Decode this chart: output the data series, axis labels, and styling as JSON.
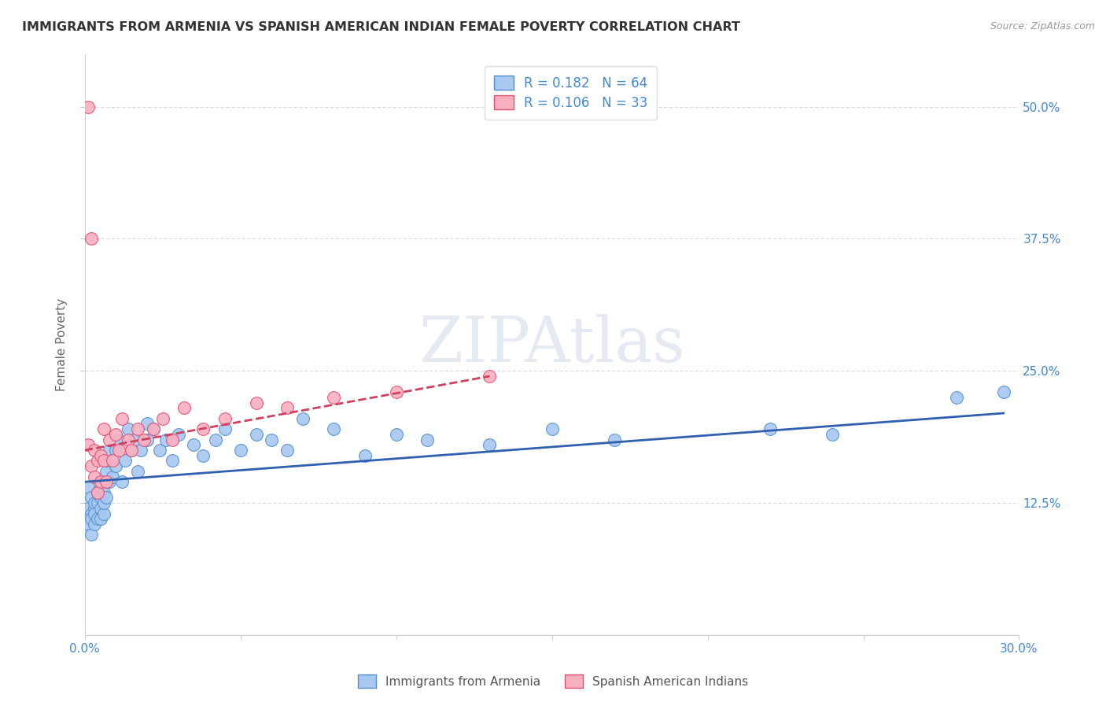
{
  "title": "IMMIGRANTS FROM ARMENIA VS SPANISH AMERICAN INDIAN FEMALE POVERTY CORRELATION CHART",
  "source": "Source: ZipAtlas.com",
  "ylabel": "Female Poverty",
  "legend_labels": [
    "Immigrants from Armenia",
    "Spanish American Indians"
  ],
  "r_values": [
    0.182,
    0.106
  ],
  "n_values": [
    64,
    33
  ],
  "xlim": [
    0.0,
    0.3
  ],
  "ylim": [
    0.0,
    0.55
  ],
  "yticks": [
    0.125,
    0.25,
    0.375,
    0.5
  ],
  "ytick_labels": [
    "12.5%",
    "25.0%",
    "37.5%",
    "50.0%"
  ],
  "blue_color": "#A8C8F0",
  "pink_color": "#F8B0C0",
  "blue_edge_color": "#5090D0",
  "pink_edge_color": "#E05070",
  "blue_line_color": "#3060B0",
  "pink_line_color": "#D04060",
  "title_color": "#333333",
  "axis_label_color": "#666666",
  "tick_label_color": "#4488CC",
  "grid_color": "#DDDDDD",
  "watermark": "ZIPAtlas",
  "blue_x": [
    0.001,
    0.001,
    0.001,
    0.002,
    0.002,
    0.002,
    0.002,
    0.003,
    0.003,
    0.003,
    0.003,
    0.004,
    0.004,
    0.004,
    0.005,
    0.005,
    0.005,
    0.005,
    0.006,
    0.006,
    0.006,
    0.007,
    0.007,
    0.007,
    0.008,
    0.008,
    0.009,
    0.01,
    0.01,
    0.011,
    0.012,
    0.013,
    0.014,
    0.015,
    0.016,
    0.017,
    0.018,
    0.02,
    0.02,
    0.022,
    0.024,
    0.026,
    0.028,
    0.03,
    0.035,
    0.038,
    0.042,
    0.045,
    0.05,
    0.055,
    0.06,
    0.065,
    0.07,
    0.08,
    0.09,
    0.1,
    0.11,
    0.13,
    0.15,
    0.17,
    0.22,
    0.24,
    0.28,
    0.295
  ],
  "blue_y": [
    0.14,
    0.105,
    0.12,
    0.115,
    0.095,
    0.13,
    0.11,
    0.12,
    0.125,
    0.105,
    0.115,
    0.135,
    0.11,
    0.125,
    0.13,
    0.11,
    0.12,
    0.14,
    0.135,
    0.115,
    0.125,
    0.155,
    0.165,
    0.13,
    0.145,
    0.175,
    0.15,
    0.175,
    0.16,
    0.185,
    0.145,
    0.165,
    0.195,
    0.175,
    0.185,
    0.155,
    0.175,
    0.2,
    0.185,
    0.195,
    0.175,
    0.185,
    0.165,
    0.19,
    0.18,
    0.17,
    0.185,
    0.195,
    0.175,
    0.19,
    0.185,
    0.175,
    0.205,
    0.195,
    0.17,
    0.19,
    0.185,
    0.18,
    0.195,
    0.185,
    0.195,
    0.19,
    0.225,
    0.23
  ],
  "pink_x": [
    0.001,
    0.001,
    0.002,
    0.002,
    0.003,
    0.003,
    0.004,
    0.004,
    0.005,
    0.005,
    0.006,
    0.006,
    0.007,
    0.008,
    0.009,
    0.01,
    0.011,
    0.012,
    0.014,
    0.015,
    0.017,
    0.019,
    0.022,
    0.025,
    0.028,
    0.032,
    0.038,
    0.045,
    0.055,
    0.065,
    0.08,
    0.1,
    0.13
  ],
  "pink_y": [
    0.5,
    0.18,
    0.375,
    0.16,
    0.175,
    0.15,
    0.165,
    0.135,
    0.17,
    0.145,
    0.165,
    0.195,
    0.145,
    0.185,
    0.165,
    0.19,
    0.175,
    0.205,
    0.185,
    0.175,
    0.195,
    0.185,
    0.195,
    0.205,
    0.185,
    0.215,
    0.195,
    0.205,
    0.22,
    0.215,
    0.225,
    0.23,
    0.245
  ],
  "blue_line_x": [
    0.0,
    0.295
  ],
  "blue_line_y": [
    0.145,
    0.21
  ],
  "pink_line_x": [
    0.0,
    0.13
  ],
  "pink_line_y": [
    0.175,
    0.245
  ]
}
